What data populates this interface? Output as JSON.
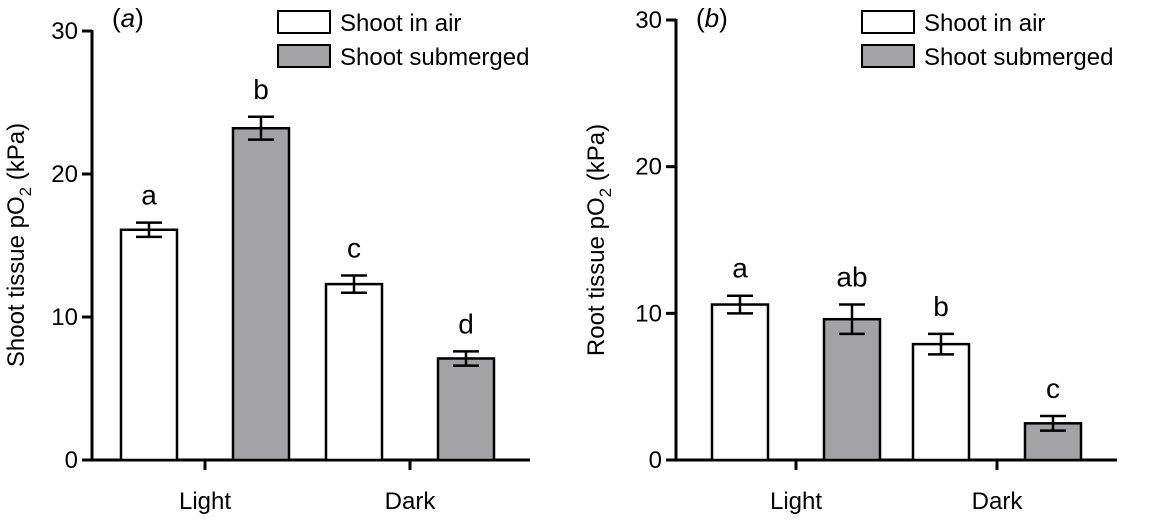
{
  "colors": {
    "air": "#ffffff",
    "submerged": "#a3a3a6",
    "stroke": "#000000"
  },
  "chart_data": [
    {
      "type": "bar",
      "panel": "(a)",
      "ylabel_main": "Shoot tissue pO",
      "ylabel_sub": "2",
      "ylabel_unit": " (kPa)",
      "ylim": [
        0,
        30
      ],
      "yticks": [
        0,
        10,
        20,
        30
      ],
      "categories": [
        "Light",
        "Dark"
      ],
      "legend": "top-right",
      "grid": false,
      "series": [
        {
          "name": "Shoot in air",
          "values": [
            16.1,
            12.3
          ],
          "errors": [
            0.5,
            0.6
          ],
          "labels": [
            "a",
            "c"
          ]
        },
        {
          "name": "Shoot submerged",
          "values": [
            23.2,
            7.1
          ],
          "errors": [
            0.8,
            0.5
          ],
          "labels": [
            "b",
            "d"
          ]
        }
      ]
    },
    {
      "type": "bar",
      "panel": "(b)",
      "ylabel_main": "Root tissue pO",
      "ylabel_sub": "2",
      "ylabel_unit": " (kPa)",
      "ylim": [
        0,
        30
      ],
      "yticks": [
        0,
        10,
        20,
        30
      ],
      "categories": [
        "Light",
        "Dark"
      ],
      "legend": "top-right",
      "grid": false,
      "series": [
        {
          "name": "Shoot in air",
          "values": [
            10.6,
            7.9
          ],
          "errors": [
            0.6,
            0.7
          ],
          "labels": [
            "a",
            "b"
          ]
        },
        {
          "name": "Shoot submerged",
          "values": [
            9.6,
            2.5
          ],
          "errors": [
            1.0,
            0.5
          ],
          "labels": [
            "ab",
            "c"
          ]
        }
      ]
    }
  ]
}
